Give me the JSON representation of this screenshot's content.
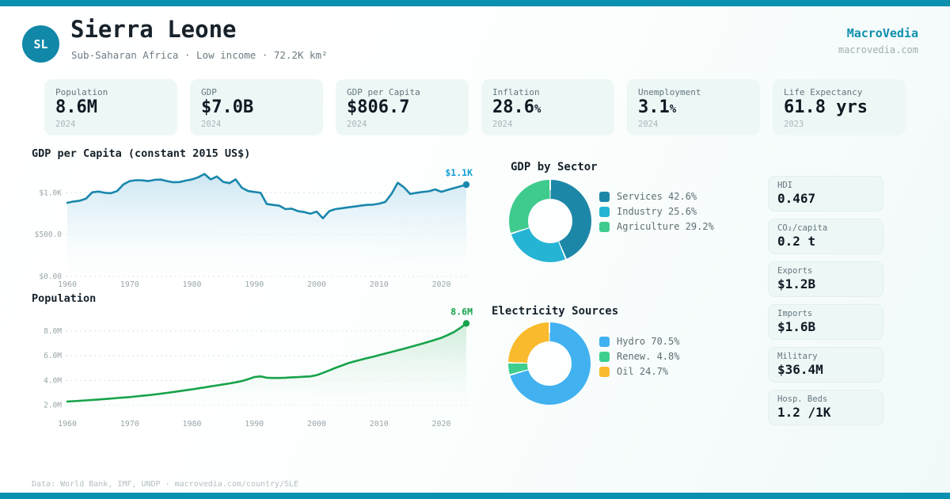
{
  "brand": {
    "name": "MacroVedia",
    "domain": "macrovedia.com"
  },
  "header": {
    "badge": "SL",
    "title": "Sierra Leone",
    "subtitle": "Sub-Saharan Africa · Low income · 72.2K km²"
  },
  "stats": [
    {
      "label": "Population",
      "value": "8.6M",
      "unit": "",
      "year": "2024"
    },
    {
      "label": "GDP",
      "value": "$7.0B",
      "unit": "",
      "year": "2024"
    },
    {
      "label": "GDP per Capita",
      "value": "$806.7",
      "unit": "",
      "year": "2024"
    },
    {
      "label": "Inflation",
      "value": "28.6",
      "unit": "%",
      "year": "2024"
    },
    {
      "label": "Unemployment",
      "value": "3.1",
      "unit": "%",
      "year": "2024"
    },
    {
      "label": "Life Expectancy",
      "value": "61.8 yrs",
      "unit": "",
      "year": "2023"
    }
  ],
  "sections": {
    "gdp_chart_title": "GDP per Capita (constant 2015 US$)",
    "population_chart_title": "Population",
    "sector_title": "GDP by Sector",
    "electricity_title": "Electricity Sources"
  },
  "side_stats": [
    {
      "label": "HDI",
      "value": "0.467"
    },
    {
      "label": "CO₂/capita",
      "value": "0.2 t"
    },
    {
      "label": "Exports",
      "value": "$1.2B"
    },
    {
      "label": "Imports",
      "value": "$1.6B"
    },
    {
      "label": "Military",
      "value": "$36.4M"
    },
    {
      "label": "Hosp. Beds",
      "value": "1.2 /1K"
    }
  ],
  "footer": {
    "text": "Data: World Bank, IMF, UNDP · macrovedia.com/country/SLE"
  },
  "colors": {
    "accent_bar": "#0a91af",
    "badge": "#1188a8",
    "brand": "#0d90ae",
    "gdp_line": "#1a87ad",
    "gdp_end_label": "#14a0d4",
    "pop_line": "#17a34b",
    "pop_end_label": "#16a34a"
  },
  "chart_data": [
    {
      "type": "line",
      "id": "gdp_per_capita",
      "title": "GDP per Capita (constant 2015 US$)",
      "years_from": 1960,
      "years_to": 2024,
      "values": [
        880,
        895,
        905,
        930,
        1005,
        1015,
        1000,
        995,
        1020,
        1100,
        1140,
        1150,
        1148,
        1140,
        1155,
        1158,
        1140,
        1125,
        1128,
        1145,
        1160,
        1185,
        1225,
        1160,
        1195,
        1130,
        1115,
        1160,
        1060,
        1020,
        1010,
        1000,
        865,
        855,
        845,
        805,
        810,
        780,
        770,
        750,
        775,
        695,
        780,
        805,
        815,
        825,
        835,
        845,
        855,
        858,
        870,
        890,
        985,
        1120,
        1065,
        985,
        1000,
        1010,
        1018,
        1040,
        1012,
        1035,
        1055,
        1075,
        1097
      ],
      "ylim": [
        0,
        1240
      ],
      "yticks": [
        {
          "v": 0,
          "label": "$0.00"
        },
        {
          "v": 500,
          "label": "$500.0"
        },
        {
          "v": 1000,
          "label": "$1.0K"
        }
      ],
      "xticks": [
        {
          "v": 1960,
          "label": "1960"
        },
        {
          "v": 1970,
          "label": "1970"
        },
        {
          "v": 1980,
          "label": "1980"
        },
        {
          "v": 1990,
          "label": "1990"
        },
        {
          "v": 2000,
          "label": "2000"
        },
        {
          "v": 2010,
          "label": "2010"
        },
        {
          "v": 2020,
          "label": "2020"
        }
      ],
      "grid": true,
      "line_color": "#1a87ad",
      "fill_from": "#c9e5f2",
      "fill_to": "#ffffff",
      "end_label": "$1.1K",
      "end_label_color": "#14a0d4"
    },
    {
      "type": "line",
      "id": "population",
      "title": "Population",
      "years_from": 1960,
      "years_to": 2024,
      "values": [
        2.3,
        2.33,
        2.36,
        2.39,
        2.43,
        2.46,
        2.5,
        2.54,
        2.58,
        2.62,
        2.66,
        2.71,
        2.76,
        2.81,
        2.87,
        2.93,
        3.0,
        3.07,
        3.14,
        3.21,
        3.28,
        3.36,
        3.44,
        3.52,
        3.6,
        3.68,
        3.76,
        3.85,
        3.95,
        4.1,
        4.28,
        4.33,
        4.22,
        4.2,
        4.2,
        4.22,
        4.25,
        4.27,
        4.3,
        4.33,
        4.43,
        4.61,
        4.81,
        5.01,
        5.2,
        5.39,
        5.53,
        5.66,
        5.79,
        5.91,
        6.04,
        6.17,
        6.3,
        6.43,
        6.56,
        6.7,
        6.84,
        6.98,
        7.13,
        7.28,
        7.44,
        7.66,
        7.9,
        8.23,
        8.6
      ],
      "ylim": [
        1.4,
        9.2
      ],
      "yticks": [
        {
          "v": 2,
          "label": "2.0M"
        },
        {
          "v": 4,
          "label": "4.0M"
        },
        {
          "v": 6,
          "label": "6.0M"
        },
        {
          "v": 8,
          "label": "8.0M"
        }
      ],
      "xticks": [
        {
          "v": 1960,
          "label": "1960"
        },
        {
          "v": 1970,
          "label": "1970"
        },
        {
          "v": 1980,
          "label": "1980"
        },
        {
          "v": 1990,
          "label": "1990"
        },
        {
          "v": 2000,
          "label": "2000"
        },
        {
          "v": 2010,
          "label": "2010"
        },
        {
          "v": 2020,
          "label": "2020"
        }
      ],
      "grid": true,
      "line_color": "#17a34b",
      "fill_from": "#cdebd9",
      "fill_to": "#ffffff",
      "end_label": "8.6M",
      "end_label_color": "#16a34a"
    },
    {
      "type": "pie",
      "id": "gdp_by_sector",
      "title": "GDP by Sector",
      "slices": [
        {
          "label": "Services",
          "pct": 42.6,
          "color": "#1d87a8"
        },
        {
          "label": "Industry",
          "pct": 25.6,
          "color": "#25b4d4"
        },
        {
          "label": "Agriculture",
          "pct": 29.2,
          "color": "#3fcb8e"
        }
      ],
      "legend_position": "right"
    },
    {
      "type": "pie",
      "id": "electricity_sources",
      "title": "Electricity Sources",
      "slices": [
        {
          "label": "Hydro",
          "pct": 70.5,
          "color": "#41b1f0"
        },
        {
          "label": "Renew.",
          "pct": 4.8,
          "color": "#3ecf8e"
        },
        {
          "label": "Oil",
          "pct": 24.7,
          "color": "#f9bb2d"
        }
      ],
      "legend_position": "right"
    }
  ]
}
